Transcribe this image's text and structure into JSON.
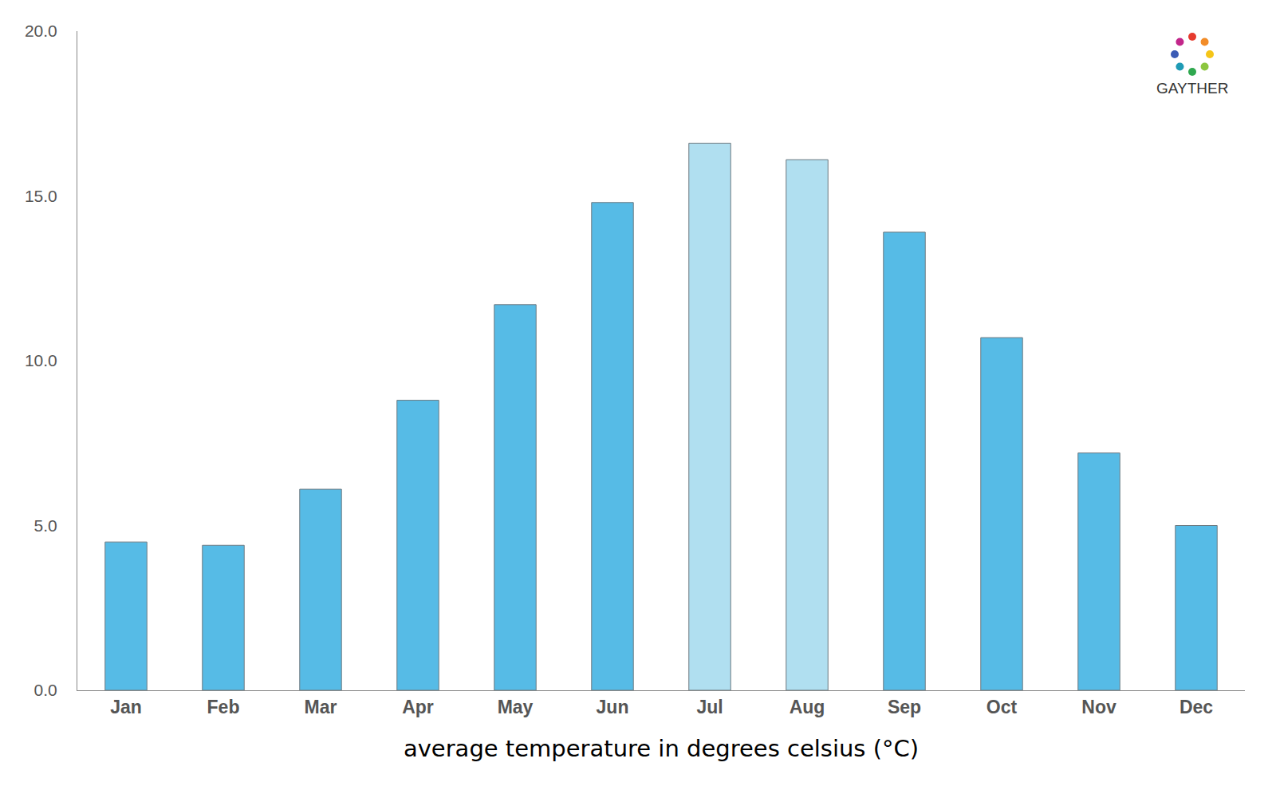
{
  "chart_data": {
    "type": "bar",
    "x_label": "average temperature in degrees celsius (°C)",
    "categories": [
      "Jan",
      "Feb",
      "Mar",
      "Apr",
      "May",
      "Jun",
      "Jul",
      "Aug",
      "Sep",
      "Oct",
      "Nov",
      "Dec"
    ],
    "values": [
      4.5,
      4.4,
      6.1,
      8.8,
      11.7,
      14.8,
      16.6,
      16.1,
      13.9,
      10.7,
      7.2,
      5.0
    ],
    "colors": [
      "#56bbe6",
      "#56bbe6",
      "#56bbe6",
      "#56bbe6",
      "#56bbe6",
      "#56bbe6",
      "#b0dff0",
      "#b0dff0",
      "#56bbe6",
      "#56bbe6",
      "#56bbe6",
      "#56bbe6"
    ],
    "ylim": [
      0,
      20
    ],
    "yticks": [
      {
        "value": 0,
        "label": "0.0"
      },
      {
        "value": 5,
        "label": "5.0"
      },
      {
        "value": 10,
        "label": "10.0"
      },
      {
        "value": 15,
        "label": "15.0"
      },
      {
        "value": 20,
        "label": "20.0"
      }
    ],
    "grid": false,
    "annotations": [
      {
        "text": "GAYTHER"
      }
    ]
  }
}
